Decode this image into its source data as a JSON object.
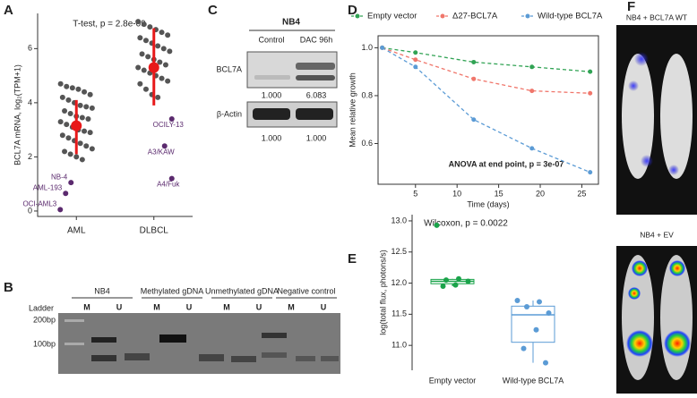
{
  "panel_labels": [
    "A",
    "B",
    "C",
    "D",
    "E",
    "F"
  ],
  "chart_data": [
    {
      "type": "strip",
      "title": "T-test, p = 2.8e-09",
      "ylabel": "BCL7A mRNA, log₂(TPM+1)",
      "categories": [
        "AML",
        "DLBCL"
      ],
      "points": [
        [
          4.7,
          4.6,
          4.55,
          4.5,
          4.4,
          4.3,
          4.2,
          4.1,
          4.0,
          3.9,
          3.85,
          3.8,
          3.7,
          3.6,
          3.5,
          3.45,
          3.4,
          3.3,
          3.2,
          3.1,
          3.0,
          2.95,
          2.9,
          2.8,
          2.7,
          2.6,
          2.5,
          2.4,
          2.3,
          2.2,
          2.1,
          2.0,
          1.9
        ],
        [
          7.0,
          6.9,
          6.8,
          6.7,
          6.6,
          6.5,
          6.4,
          6.3,
          6.2,
          6.1,
          6.0,
          5.9,
          5.8,
          5.7,
          5.6,
          5.5,
          5.4,
          5.3,
          5.2,
          5.1,
          5.0,
          4.9,
          4.8,
          4.7,
          4.5,
          4.3,
          4.2
        ]
      ],
      "means": [
        3.15,
        5.3
      ],
      "range_low": [
        2.1,
        3.9
      ],
      "range_high": [
        4.1,
        6.75
      ],
      "labeled_points": [
        {
          "label": "NB-4",
          "category": "AML",
          "value": 1.05
        },
        {
          "label": "AML-193",
          "category": "AML",
          "value": 0.65
        },
        {
          "label": "OCI-AML3",
          "category": "AML",
          "value": 0.05
        },
        {
          "label": "OCILY-13",
          "category": "DLBCL",
          "value": 3.4
        },
        {
          "label": "A3/KAW",
          "category": "DLBCL",
          "value": 2.4
        },
        {
          "label": "A4/Fuk",
          "category": "DLBCL",
          "value": 1.2
        }
      ],
      "point_color": "#555555",
      "label_color": "#5b2a6e",
      "mean_color": "#e8191a",
      "ylim": [
        -0.2,
        7.3
      ],
      "yticks": [
        0,
        2,
        4,
        6
      ]
    },
    {
      "type": "line",
      "ylabel": "Mean relative growth",
      "xlabel": "Time (days)",
      "annotation": "ANOVA at end point, p = 3e-07",
      "x": [
        1,
        5,
        12,
        19,
        26
      ],
      "series": [
        {
          "name": "Empty vector",
          "color": "#31a354",
          "values": [
            1.0,
            0.98,
            0.94,
            0.92,
            0.9
          ]
        },
        {
          "name": "Δ27-BCL7A",
          "color": "#f0766b",
          "values": [
            1.0,
            0.95,
            0.87,
            0.82,
            0.81
          ]
        },
        {
          "name": "Wild-type BCL7A",
          "color": "#5b9bd5",
          "values": [
            1.0,
            0.92,
            0.7,
            0.58,
            0.48
          ]
        }
      ],
      "xlim": [
        0.5,
        27
      ],
      "xticks": [
        5,
        10,
        15,
        20,
        25
      ],
      "ylim": [
        0.43,
        1.05
      ],
      "yticks": [
        0.6,
        0.8,
        {
          "value": 1,
          "label": "1.0"
        }
      ]
    },
    {
      "type": "box",
      "title": "Wilcoxon, p = 0.0022",
      "ylabel": "log(total flux, photons/s)",
      "categories": [
        "Empty vector",
        "Wild-type BCL7A"
      ],
      "colors": [
        "#1aa34a",
        "#5b9bd5"
      ],
      "points": [
        [
          12.93,
          12.07,
          12.05,
          12.03,
          11.97,
          11.95
        ],
        [
          11.72,
          11.7,
          11.62,
          11.52,
          11.25,
          10.95,
          10.72
        ]
      ],
      "boxes": [
        {
          "q1": 11.99,
          "median": 12.03,
          "q3": 12.06,
          "whislo": 11.95,
          "whishi": 12.07
        },
        {
          "q1": 11.05,
          "median": 11.49,
          "q3": 11.63,
          "whislo": 10.72,
          "whishi": 11.72
        }
      ],
      "ylim": [
        10.6,
        13.1
      ],
      "yticks": [
        {
          "value": 11,
          "label": "11.0"
        },
        11.5,
        {
          "value": 12,
          "label": "12.0"
        },
        12.5,
        {
          "value": 13,
          "label": "13.0"
        }
      ]
    }
  ],
  "blot": {
    "cell_line": "NB4",
    "columns": [
      "Control",
      "DAC 96h"
    ],
    "rows": [
      {
        "label": "BCL7A",
        "quant": [
          "1.000",
          "6.083"
        ]
      },
      {
        "label": "β-Actin",
        "quant": [
          "1.000",
          "1.000"
        ]
      }
    ]
  },
  "gel": {
    "ladder": "Ladder",
    "sizes": [
      "200bp",
      "100bp"
    ],
    "groups": [
      "NB4",
      "Methylated gDNA",
      "Unmethylated gDNA",
      "Negative control"
    ],
    "lanes": [
      "M",
      "U"
    ]
  },
  "imaging": {
    "titles": [
      "NB4 + BCL7A WT",
      "NB4 + EV"
    ]
  }
}
